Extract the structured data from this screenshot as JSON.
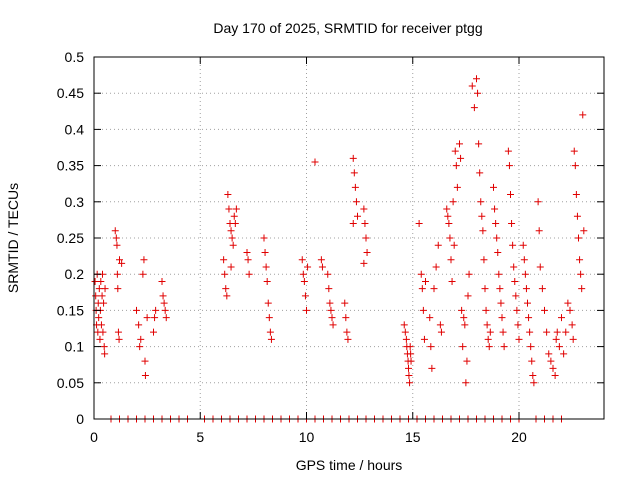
{
  "chart_data": {
    "type": "scatter",
    "title": "Day 170 of 2025, SRMTID for receiver ptgg",
    "xlabel": "GPS time / hours",
    "ylabel": "SRMTID / TECUs",
    "xlim": [
      0,
      24
    ],
    "ylim": [
      0,
      0.5
    ],
    "xticks": [
      0,
      5,
      10,
      15,
      20
    ],
    "yticks": [
      0,
      0.05,
      0.1,
      0.15,
      0.2,
      0.25,
      0.3,
      0.35,
      0.4,
      0.45,
      0.5
    ],
    "xtick_labels": [
      "0",
      "5",
      "10",
      "15",
      "20"
    ],
    "ytick_labels": [
      "0",
      "0.05",
      "0.1",
      "0.15",
      "0.2",
      "0.25",
      "0.3",
      "0.35",
      "0.4",
      "0.45",
      "0.5"
    ],
    "grid": true,
    "marker": "+",
    "color": "#e00000",
    "series": [
      {
        "name": "SRMTID",
        "points": [
          [
            0.05,
            0.19
          ],
          [
            0.08,
            0.17
          ],
          [
            0.1,
            0.15
          ],
          [
            0.12,
            0.13
          ],
          [
            0.15,
            0.2
          ],
          [
            0.18,
            0.12
          ],
          [
            0.2,
            0.16
          ],
          [
            0.22,
            0.14
          ],
          [
            0.25,
            0.18
          ],
          [
            0.28,
            0.11
          ],
          [
            0.3,
            0.15
          ],
          [
            0.32,
            0.19
          ],
          [
            0.35,
            0.13
          ],
          [
            0.38,
            0.17
          ],
          [
            0.4,
            0.2
          ],
          [
            0.42,
            0.12
          ],
          [
            0.45,
            0.16
          ],
          [
            0.48,
            0.1
          ],
          [
            0.5,
            0.09
          ],
          [
            0.52,
            0.18
          ],
          [
            1.0,
            0.26
          ],
          [
            1.05,
            0.25
          ],
          [
            1.08,
            0.24
          ],
          [
            1.1,
            0.2
          ],
          [
            1.12,
            0.18
          ],
          [
            1.15,
            0.12
          ],
          [
            1.18,
            0.11
          ],
          [
            1.2,
            0.22
          ],
          [
            1.3,
            0.215
          ],
          [
            2.0,
            0.15
          ],
          [
            2.1,
            0.13
          ],
          [
            2.15,
            0.1
          ],
          [
            2.2,
            0.11
          ],
          [
            2.3,
            0.2
          ],
          [
            2.35,
            0.22
          ],
          [
            2.4,
            0.08
          ],
          [
            2.42,
            0.06
          ],
          [
            2.5,
            0.14
          ],
          [
            2.8,
            0.12
          ],
          [
            2.85,
            0.14
          ],
          [
            2.9,
            0.15
          ],
          [
            3.2,
            0.19
          ],
          [
            3.25,
            0.17
          ],
          [
            3.3,
            0.16
          ],
          [
            3.35,
            0.15
          ],
          [
            3.4,
            0.14
          ],
          [
            6.1,
            0.22
          ],
          [
            6.15,
            0.2
          ],
          [
            6.2,
            0.18
          ],
          [
            6.25,
            0.17
          ],
          [
            6.3,
            0.31
          ],
          [
            6.35,
            0.29
          ],
          [
            6.4,
            0.27
          ],
          [
            6.45,
            0.26
          ],
          [
            6.5,
            0.25
          ],
          [
            6.55,
            0.24
          ],
          [
            6.6,
            0.28
          ],
          [
            6.65,
            0.27
          ],
          [
            6.7,
            0.29
          ],
          [
            6.45,
            0.21
          ],
          [
            7.2,
            0.23
          ],
          [
            7.25,
            0.22
          ],
          [
            7.3,
            0.2
          ],
          [
            8.0,
            0.25
          ],
          [
            8.05,
            0.23
          ],
          [
            8.1,
            0.21
          ],
          [
            8.15,
            0.19
          ],
          [
            8.2,
            0.16
          ],
          [
            8.25,
            0.14
          ],
          [
            8.3,
            0.12
          ],
          [
            8.35,
            0.11
          ],
          [
            9.8,
            0.22
          ],
          [
            9.85,
            0.2
          ],
          [
            9.9,
            0.19
          ],
          [
            9.95,
            0.17
          ],
          [
            10.0,
            0.15
          ],
          [
            10.05,
            0.21
          ],
          [
            10.4,
            0.355
          ],
          [
            10.7,
            0.22
          ],
          [
            10.75,
            0.21
          ],
          [
            11.0,
            0.2
          ],
          [
            11.05,
            0.18
          ],
          [
            11.1,
            0.16
          ],
          [
            11.15,
            0.15
          ],
          [
            11.2,
            0.14
          ],
          [
            11.25,
            0.13
          ],
          [
            11.8,
            0.16
          ],
          [
            11.85,
            0.14
          ],
          [
            11.9,
            0.12
          ],
          [
            11.95,
            0.11
          ],
          [
            12.2,
            0.36
          ],
          [
            12.25,
            0.34
          ],
          [
            12.3,
            0.32
          ],
          [
            12.35,
            0.3
          ],
          [
            12.4,
            0.28
          ],
          [
            12.2,
            0.27
          ],
          [
            12.7,
            0.29
          ],
          [
            12.75,
            0.27
          ],
          [
            12.8,
            0.25
          ],
          [
            12.85,
            0.23
          ],
          [
            12.7,
            0.215
          ],
          [
            14.6,
            0.13
          ],
          [
            14.65,
            0.12
          ],
          [
            14.7,
            0.11
          ],
          [
            14.72,
            0.1
          ],
          [
            14.75,
            0.09
          ],
          [
            14.78,
            0.08
          ],
          [
            14.8,
            0.07
          ],
          [
            14.82,
            0.06
          ],
          [
            14.85,
            0.05
          ],
          [
            14.88,
            0.1
          ],
          [
            14.9,
            0.09
          ],
          [
            14.92,
            0.08
          ],
          [
            15.3,
            0.27
          ],
          [
            15.4,
            0.2
          ],
          [
            15.45,
            0.18
          ],
          [
            15.5,
            0.15
          ],
          [
            15.55,
            0.11
          ],
          [
            15.6,
            0.19
          ],
          [
            15.8,
            0.14
          ],
          [
            15.85,
            0.1
          ],
          [
            15.9,
            0.07
          ],
          [
            16.0,
            0.18
          ],
          [
            16.1,
            0.21
          ],
          [
            16.2,
            0.24
          ],
          [
            16.3,
            0.13
          ],
          [
            16.35,
            0.12
          ],
          [
            16.6,
            0.29
          ],
          [
            16.65,
            0.28
          ],
          [
            16.7,
            0.27
          ],
          [
            16.75,
            0.25
          ],
          [
            16.8,
            0.22
          ],
          [
            16.85,
            0.19
          ],
          [
            16.9,
            0.3
          ],
          [
            16.95,
            0.24
          ],
          [
            17.0,
            0.37
          ],
          [
            17.05,
            0.35
          ],
          [
            17.1,
            0.32
          ],
          [
            17.2,
            0.38
          ],
          [
            17.25,
            0.36
          ],
          [
            17.3,
            0.15
          ],
          [
            17.35,
            0.1
          ],
          [
            17.4,
            0.14
          ],
          [
            17.45,
            0.13
          ],
          [
            17.5,
            0.05
          ],
          [
            17.55,
            0.08
          ],
          [
            17.6,
            0.17
          ],
          [
            17.65,
            0.2
          ],
          [
            17.8,
            0.46
          ],
          [
            17.9,
            0.43
          ],
          [
            18.0,
            0.47
          ],
          [
            18.05,
            0.45
          ],
          [
            18.1,
            0.38
          ],
          [
            18.15,
            0.34
          ],
          [
            18.2,
            0.3
          ],
          [
            18.25,
            0.28
          ],
          [
            18.3,
            0.26
          ],
          [
            18.35,
            0.22
          ],
          [
            18.4,
            0.18
          ],
          [
            18.45,
            0.15
          ],
          [
            18.5,
            0.13
          ],
          [
            18.55,
            0.11
          ],
          [
            18.6,
            0.1
          ],
          [
            18.65,
            0.12
          ],
          [
            18.8,
            0.32
          ],
          [
            18.85,
            0.29
          ],
          [
            18.9,
            0.27
          ],
          [
            18.95,
            0.25
          ],
          [
            19.0,
            0.23
          ],
          [
            19.05,
            0.2
          ],
          [
            19.1,
            0.18
          ],
          [
            19.15,
            0.16
          ],
          [
            19.2,
            0.14
          ],
          [
            19.25,
            0.12
          ],
          [
            19.3,
            0.1
          ],
          [
            19.5,
            0.37
          ],
          [
            19.55,
            0.35
          ],
          [
            19.6,
            0.31
          ],
          [
            19.65,
            0.27
          ],
          [
            19.7,
            0.24
          ],
          [
            19.75,
            0.21
          ],
          [
            19.8,
            0.19
          ],
          [
            19.85,
            0.17
          ],
          [
            19.9,
            0.15
          ],
          [
            19.95,
            0.13
          ],
          [
            20.0,
            0.11
          ],
          [
            20.2,
            0.24
          ],
          [
            20.25,
            0.22
          ],
          [
            20.3,
            0.2
          ],
          [
            20.35,
            0.18
          ],
          [
            20.4,
            0.16
          ],
          [
            20.45,
            0.14
          ],
          [
            20.5,
            0.12
          ],
          [
            20.55,
            0.1
          ],
          [
            20.6,
            0.08
          ],
          [
            20.65,
            0.06
          ],
          [
            20.7,
            0.05
          ],
          [
            20.9,
            0.3
          ],
          [
            20.95,
            0.26
          ],
          [
            21.0,
            0.21
          ],
          [
            21.1,
            0.18
          ],
          [
            21.2,
            0.15
          ],
          [
            21.3,
            0.12
          ],
          [
            21.4,
            0.09
          ],
          [
            21.5,
            0.08
          ],
          [
            21.6,
            0.07
          ],
          [
            21.7,
            0.06
          ],
          [
            21.75,
            0.11
          ],
          [
            21.8,
            0.12
          ],
          [
            21.9,
            0.1
          ],
          [
            22.0,
            0.14
          ],
          [
            22.1,
            0.09
          ],
          [
            22.2,
            0.12
          ],
          [
            22.3,
            0.16
          ],
          [
            22.4,
            0.15
          ],
          [
            22.5,
            0.13
          ],
          [
            22.55,
            0.11
          ],
          [
            22.6,
            0.37
          ],
          [
            22.65,
            0.35
          ],
          [
            22.7,
            0.31
          ],
          [
            22.75,
            0.28
          ],
          [
            22.8,
            0.25
          ],
          [
            22.85,
            0.22
          ],
          [
            22.9,
            0.2
          ],
          [
            22.95,
            0.18
          ],
          [
            23.0,
            0.42
          ],
          [
            23.05,
            0.26
          ],
          [
            0.8,
            0
          ],
          [
            1.2,
            0
          ],
          [
            1.6,
            0
          ],
          [
            2.0,
            0
          ],
          [
            2.4,
            0
          ],
          [
            2.8,
            0
          ],
          [
            3.2,
            0
          ],
          [
            3.6,
            0
          ],
          [
            4.0,
            0
          ],
          [
            4.4,
            0
          ],
          [
            5.2,
            0
          ],
          [
            5.6,
            0
          ],
          [
            6.0,
            0
          ],
          [
            6.4,
            0
          ],
          [
            6.8,
            0
          ],
          [
            7.2,
            0
          ],
          [
            7.6,
            0
          ],
          [
            8.0,
            0
          ],
          [
            8.4,
            0
          ],
          [
            8.8,
            0
          ],
          [
            9.2,
            0
          ],
          [
            9.6,
            0
          ],
          [
            10.0,
            0
          ],
          [
            10.4,
            0
          ],
          [
            10.8,
            0
          ],
          [
            11.2,
            0
          ],
          [
            11.6,
            0
          ],
          [
            12.0,
            0
          ],
          [
            12.4,
            0
          ],
          [
            12.8,
            0
          ],
          [
            13.2,
            0
          ],
          [
            13.6,
            0
          ],
          [
            14.0,
            0
          ],
          [
            14.4,
            0
          ],
          [
            14.8,
            0
          ],
          [
            15.2,
            0
          ],
          [
            15.6,
            0
          ],
          [
            16.0,
            0
          ],
          [
            16.4,
            0
          ],
          [
            16.8,
            0
          ],
          [
            17.2,
            0
          ],
          [
            17.6,
            0
          ],
          [
            18.0,
            0
          ],
          [
            18.4,
            0
          ],
          [
            18.8,
            0
          ],
          [
            19.2,
            0
          ],
          [
            19.6,
            0
          ],
          [
            20.0,
            0
          ],
          [
            20.8,
            0
          ],
          [
            21.2,
            0
          ],
          [
            21.6,
            0
          ],
          [
            22.0,
            0
          ]
        ]
      }
    ]
  }
}
